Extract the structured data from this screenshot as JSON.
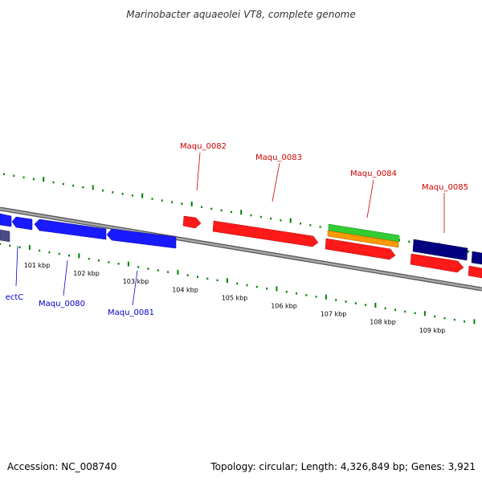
{
  "title": "Marinobacter aquaeolei VT8, complete genome",
  "footer": {
    "accession": "Accession: NC_008740",
    "summary": "Topology: circular; Length: 4,326,849 bp; Genes: 3,921"
  },
  "colors": {
    "forward_gene": "#ff0000",
    "reverse_gene": "#0000ff",
    "dark_gene": "#000080",
    "green_feature": "#33cc33",
    "orange_feature": "#ff9900",
    "backbone": "#808080",
    "tick": "#008000",
    "forward_label": "#cc0000",
    "reverse_label": "#0000cc"
  },
  "scale_labels": [
    "101 kbp",
    "102 kbp",
    "103 kbp",
    "104 kbp",
    "105 kbp",
    "106 kbp",
    "107 kbp",
    "108 kbp",
    "109 kbp"
  ],
  "gene_labels": {
    "maqu_0082": "Maqu_0082",
    "maqu_0083": "Maqu_0083",
    "maqu_0084": "Maqu_0084",
    "maqu_0085": "Maqu_0085",
    "ectc": "ectC",
    "maqu_0080": "Maqu_0080",
    "maqu_0081": "Maqu_0081"
  }
}
